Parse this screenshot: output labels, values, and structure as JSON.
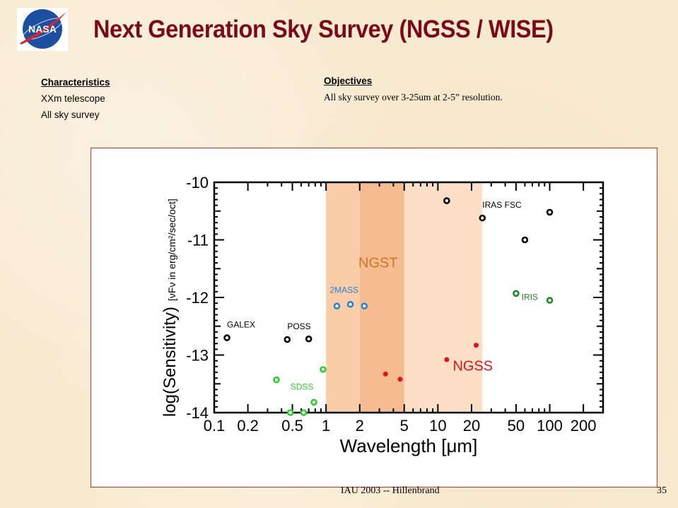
{
  "slide": {
    "title": "Next Generation Sky Survey (NGSS / WISE)",
    "logo_text": "NASA",
    "characteristics": {
      "heading": "Characteristics",
      "items": [
        "XXm telescope",
        "All sky survey"
      ]
    },
    "objectives": {
      "heading": "Objectives",
      "text": "All sky survey over 3-25um at 2-5” resolution."
    },
    "footer": {
      "center": "IAU 2003 -- Hillenbrand",
      "page_number": "35"
    }
  },
  "chart_data": {
    "type": "scatter",
    "title": "",
    "xlabel": "Wavelength  [μm]",
    "ylabel_main": "log(Sensitivity)",
    "ylabel_sub": "[νFν in erg/cm²/sec/oct]",
    "xscale": "log",
    "xlim": [
      0.1,
      300
    ],
    "ylim": [
      -14,
      -10
    ],
    "xticks": [
      0.1,
      0.2,
      0.5,
      1,
      2,
      5,
      10,
      20,
      50,
      100,
      200
    ],
    "xtick_labels": [
      "0.1",
      "0.2",
      "0.5",
      "1",
      "2",
      "5",
      "10",
      "20",
      "50",
      "100",
      "200"
    ],
    "yticks": [
      -10,
      -11,
      -12,
      -13,
      -14
    ],
    "ytick_labels": [
      "-10",
      "-11",
      "-12",
      "-13",
      "-14"
    ],
    "bands": [
      {
        "name": "NGST",
        "x": [
          1,
          2
        ],
        "color": "#f9cda8"
      },
      {
        "name": "NGST",
        "x": [
          2,
          5
        ],
        "color": "#f6bb8e"
      },
      {
        "name": "NGST",
        "x": [
          5,
          25
        ],
        "color": "#fcdfc6"
      }
    ],
    "series": [
      {
        "name": "GALEX",
        "color": "#000000",
        "marker": "open",
        "x": [
          0.13
        ],
        "y": [
          -12.7
        ]
      },
      {
        "name": "POSS",
        "color": "#000000",
        "marker": "open",
        "x": [
          0.45,
          0.7
        ],
        "y": [
          -12.73,
          -12.72
        ]
      },
      {
        "name": "SDSS",
        "color": "#2ecc2e",
        "marker": "open",
        "x": [
          0.36,
          0.48,
          0.63,
          0.78,
          0.94
        ],
        "y": [
          -13.43,
          -14.0,
          -14.0,
          -13.82,
          -13.25
        ]
      },
      {
        "name": "2MASS",
        "color": "#2b7fd6",
        "marker": "open",
        "x": [
          1.25,
          1.65,
          2.2
        ],
        "y": [
          -12.15,
          -12.12,
          -12.15
        ]
      },
      {
        "name": "NGSS",
        "color": "#e0141e",
        "marker": "filled",
        "x": [
          3.4,
          4.6,
          12,
          22
        ],
        "y": [
          -13.33,
          -13.42,
          -13.08,
          -12.83
        ]
      },
      {
        "name": "IRAS FSC",
        "color": "#000000",
        "marker": "open",
        "x": [
          12,
          25,
          60,
          100
        ],
        "y": [
          -10.32,
          -10.62,
          -11.0,
          -10.52
        ]
      },
      {
        "name": "IRIS",
        "color": "#1f8a2a",
        "marker": "open",
        "x": [
          50,
          100
        ],
        "y": [
          -11.93,
          -12.05
        ]
      }
    ],
    "annotations": [
      {
        "text": "GALEX",
        "x": 0.13,
        "y": -12.52,
        "color": "#000000",
        "size": "small"
      },
      {
        "text": "POSS",
        "x": 0.45,
        "y": -12.55,
        "color": "#000000",
        "size": "small"
      },
      {
        "text": "SDSS",
        "x": 0.48,
        "y": -13.6,
        "color": "#2ecc2e",
        "size": "small"
      },
      {
        "text": "2MASS",
        "x": 1.08,
        "y": -11.92,
        "color": "#2b7fd6",
        "size": "small"
      },
      {
        "text": "NGST",
        "x": 1.95,
        "y": -11.48,
        "color": "#c8782a",
        "size": "large"
      },
      {
        "text": "IRAS FSC",
        "x": 25,
        "y": -10.44,
        "color": "#000000",
        "size": "small"
      },
      {
        "text": "IRIS",
        "x": 56,
        "y": -12.04,
        "color": "#1f8a2a",
        "size": "small"
      },
      {
        "text": "NGSS",
        "x": 13.6,
        "y": -13.27,
        "color": "#e0141e",
        "size": "large"
      }
    ]
  }
}
